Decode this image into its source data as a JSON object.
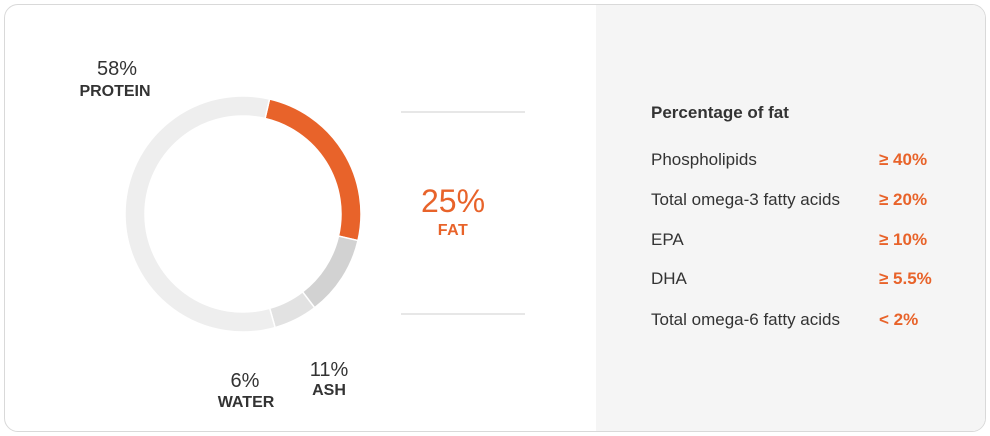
{
  "chart_data": {
    "type": "donut",
    "slices": [
      {
        "label_value": "25%",
        "name": "FAT",
        "value": 25,
        "color": "#e8632a"
      },
      {
        "label_value": "11%",
        "name": "ASH",
        "value": 11,
        "color": "#d2d2d2"
      },
      {
        "label_value": "6%",
        "name": "WATER",
        "value": 6,
        "color": "#e2e2e2"
      },
      {
        "label_value": "58%",
        "name": "PROTEIN",
        "value": 58,
        "color": "#eeeeee"
      }
    ]
  },
  "fat_table": {
    "title": "Percentage of fat",
    "rows": [
      {
        "name": "Phospholipids",
        "value": "≥ 40%"
      },
      {
        "name": "Total omega-3 fatty acids",
        "value": "≥ 20%"
      },
      {
        "name": "EPA",
        "value": "≥ 10%"
      },
      {
        "name": "DHA",
        "value": "≥ 5.5%"
      },
      {
        "name": "Total omega-6 fatty acids",
        "value": "< 2%"
      }
    ]
  },
  "colors": {
    "accent": "#e8632a",
    "panel_bg": "#f5f5f5",
    "text": "#333333"
  }
}
